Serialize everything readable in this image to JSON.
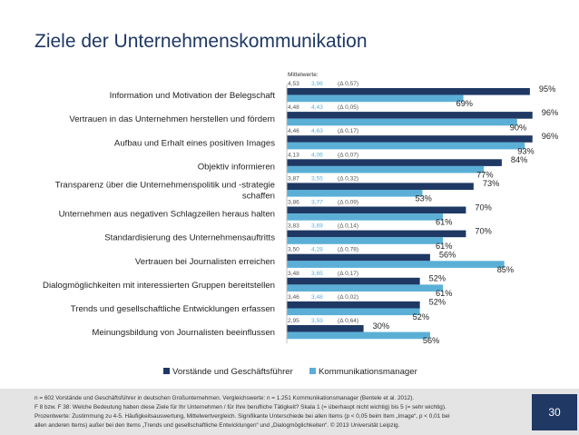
{
  "title": "Ziele der Unternehmenskommunikation",
  "chart_data": {
    "type": "bar",
    "orientation": "horizontal",
    "unit": "%",
    "xlim": [
      0,
      100
    ],
    "mittelwerte_label": "Mittelwerte:",
    "categories": [
      [
        "Information und Motivation der Belegschaft"
      ],
      [
        "Vertrauen in das Unternehmen herstellen und fördern"
      ],
      [
        "Aufbau und Erhalt eines positiven Images"
      ],
      [
        "Objektiv informieren"
      ],
      [
        "Transparenz über die Unternehmenspolitik und -strategie",
        "schaffen"
      ],
      [
        "Unternehmen aus negativen Schlagzeilen heraus halten"
      ],
      [
        "Standardisierung des Unternehmensauftritts"
      ],
      [
        "Vertrauen bei Journalisten erreichen"
      ],
      [
        "Dialogmöglichkeiten mit interessierten Gruppen bereitstellen"
      ],
      [
        "Trends und gesellschaftliche Entwicklungen erfassen"
      ],
      [
        "Meinungsbildung von Journalisten beeinflussen"
      ]
    ],
    "series": [
      {
        "name": "Vorstände und Geschäftsführer",
        "color": "#1f3864",
        "values": [
          95,
          96,
          96,
          84,
          73,
          70,
          70,
          56,
          52,
          52,
          30
        ],
        "means": [
          "4,53",
          "4,48",
          "4,46",
          "4,13",
          "3,87",
          "3,86",
          "3,83",
          "3,50",
          "3,48",
          "3,46",
          "2,95"
        ]
      },
      {
        "name": "Kommunikationsmanager",
        "color": "#5bafd6",
        "values": [
          69,
          90,
          93,
          77,
          53,
          61,
          61,
          85,
          61,
          52,
          56
        ],
        "means": [
          "3,96",
          "4,43",
          "4,63",
          "4,06",
          "3,55",
          "3,77",
          "3,69",
          "4,28",
          "3,65",
          "3,48",
          "3,59"
        ]
      }
    ],
    "deltas": [
      "(Δ 0,57)",
      "(Δ 0,05)",
      "(Δ 0,17)",
      "(Δ 0,07)",
      "(Δ 0,32)",
      "(Δ 0,09)",
      "(Δ 0,14)",
      "(Δ 0,78)",
      "(Δ 0,17)",
      "(Δ 0,02)",
      "(Δ 0,64)"
    ]
  },
  "footnotes": [
    "n = 602 Vorstände und Geschäftsführer in deutschen Großunternehmen. Vergleichswerte: n = 1.251 Kommunikationsmanager (Bentele et al. 2012).",
    "F 8 bzw. F 38: Welche Bedeutung haben diese Ziele für Ihr Unternehmen / für Ihre berufliche Tätigkeit? Skala 1 (= überhaupt nicht wichtig) bis 5 (= sehr wichtig).",
    "Prozentwerte: Zustimmung zu 4-5. Häufigkeitsauswertung, Mittelwertvergleich. Signifikante Unterschiede bei allen Items (p < 0,05 beim Item „Image“, p < 0,01 bei",
    "allen anderen Items) außer bei den Items „Trends und gesellschaftliche Entwicklungen“ und „Dialogmöglichkeiten“.  © 2013 Universität Leipzig."
  ],
  "page_number": "30"
}
